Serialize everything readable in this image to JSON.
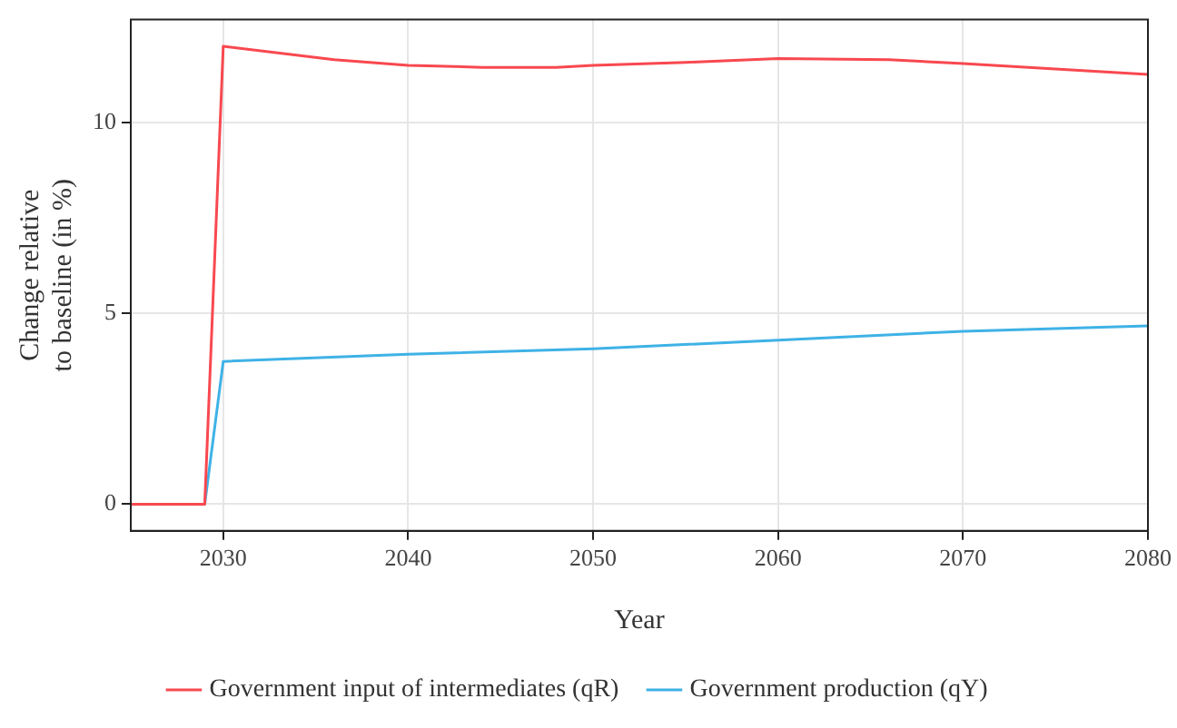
{
  "chart_data": {
    "type": "line",
    "xlabel": "Year",
    "ylabel": "Change relative\nto baseline (in %)",
    "xlim": [
      2025,
      2080
    ],
    "xticks": [
      2030,
      2040,
      2050,
      2060,
      2070,
      2080
    ],
    "ylim": [
      -0.7,
      12.7
    ],
    "yticks": [
      0,
      5,
      10
    ],
    "grid": true,
    "legend": "bottom",
    "marker": "none",
    "line_style": "solid",
    "series": [
      {
        "name": "Government input of intermediates (qR)",
        "color": "#f8484f",
        "x": [
          2025,
          2029,
          2030,
          2036,
          2040,
          2044,
          2048,
          2050,
          2055,
          2060,
          2066,
          2070,
          2080
        ],
        "values": [
          0,
          0,
          12.0,
          11.65,
          11.5,
          11.45,
          11.45,
          11.5,
          11.58,
          11.68,
          11.65,
          11.55,
          11.26
        ]
      },
      {
        "name": "Government production (qY)",
        "color": "#3fb2e6",
        "x": [
          2025,
          2029,
          2030,
          2040,
          2050,
          2060,
          2070,
          2080
        ],
        "values": [
          0,
          0,
          3.74,
          3.93,
          4.07,
          4.3,
          4.53,
          4.67
        ]
      }
    ]
  }
}
